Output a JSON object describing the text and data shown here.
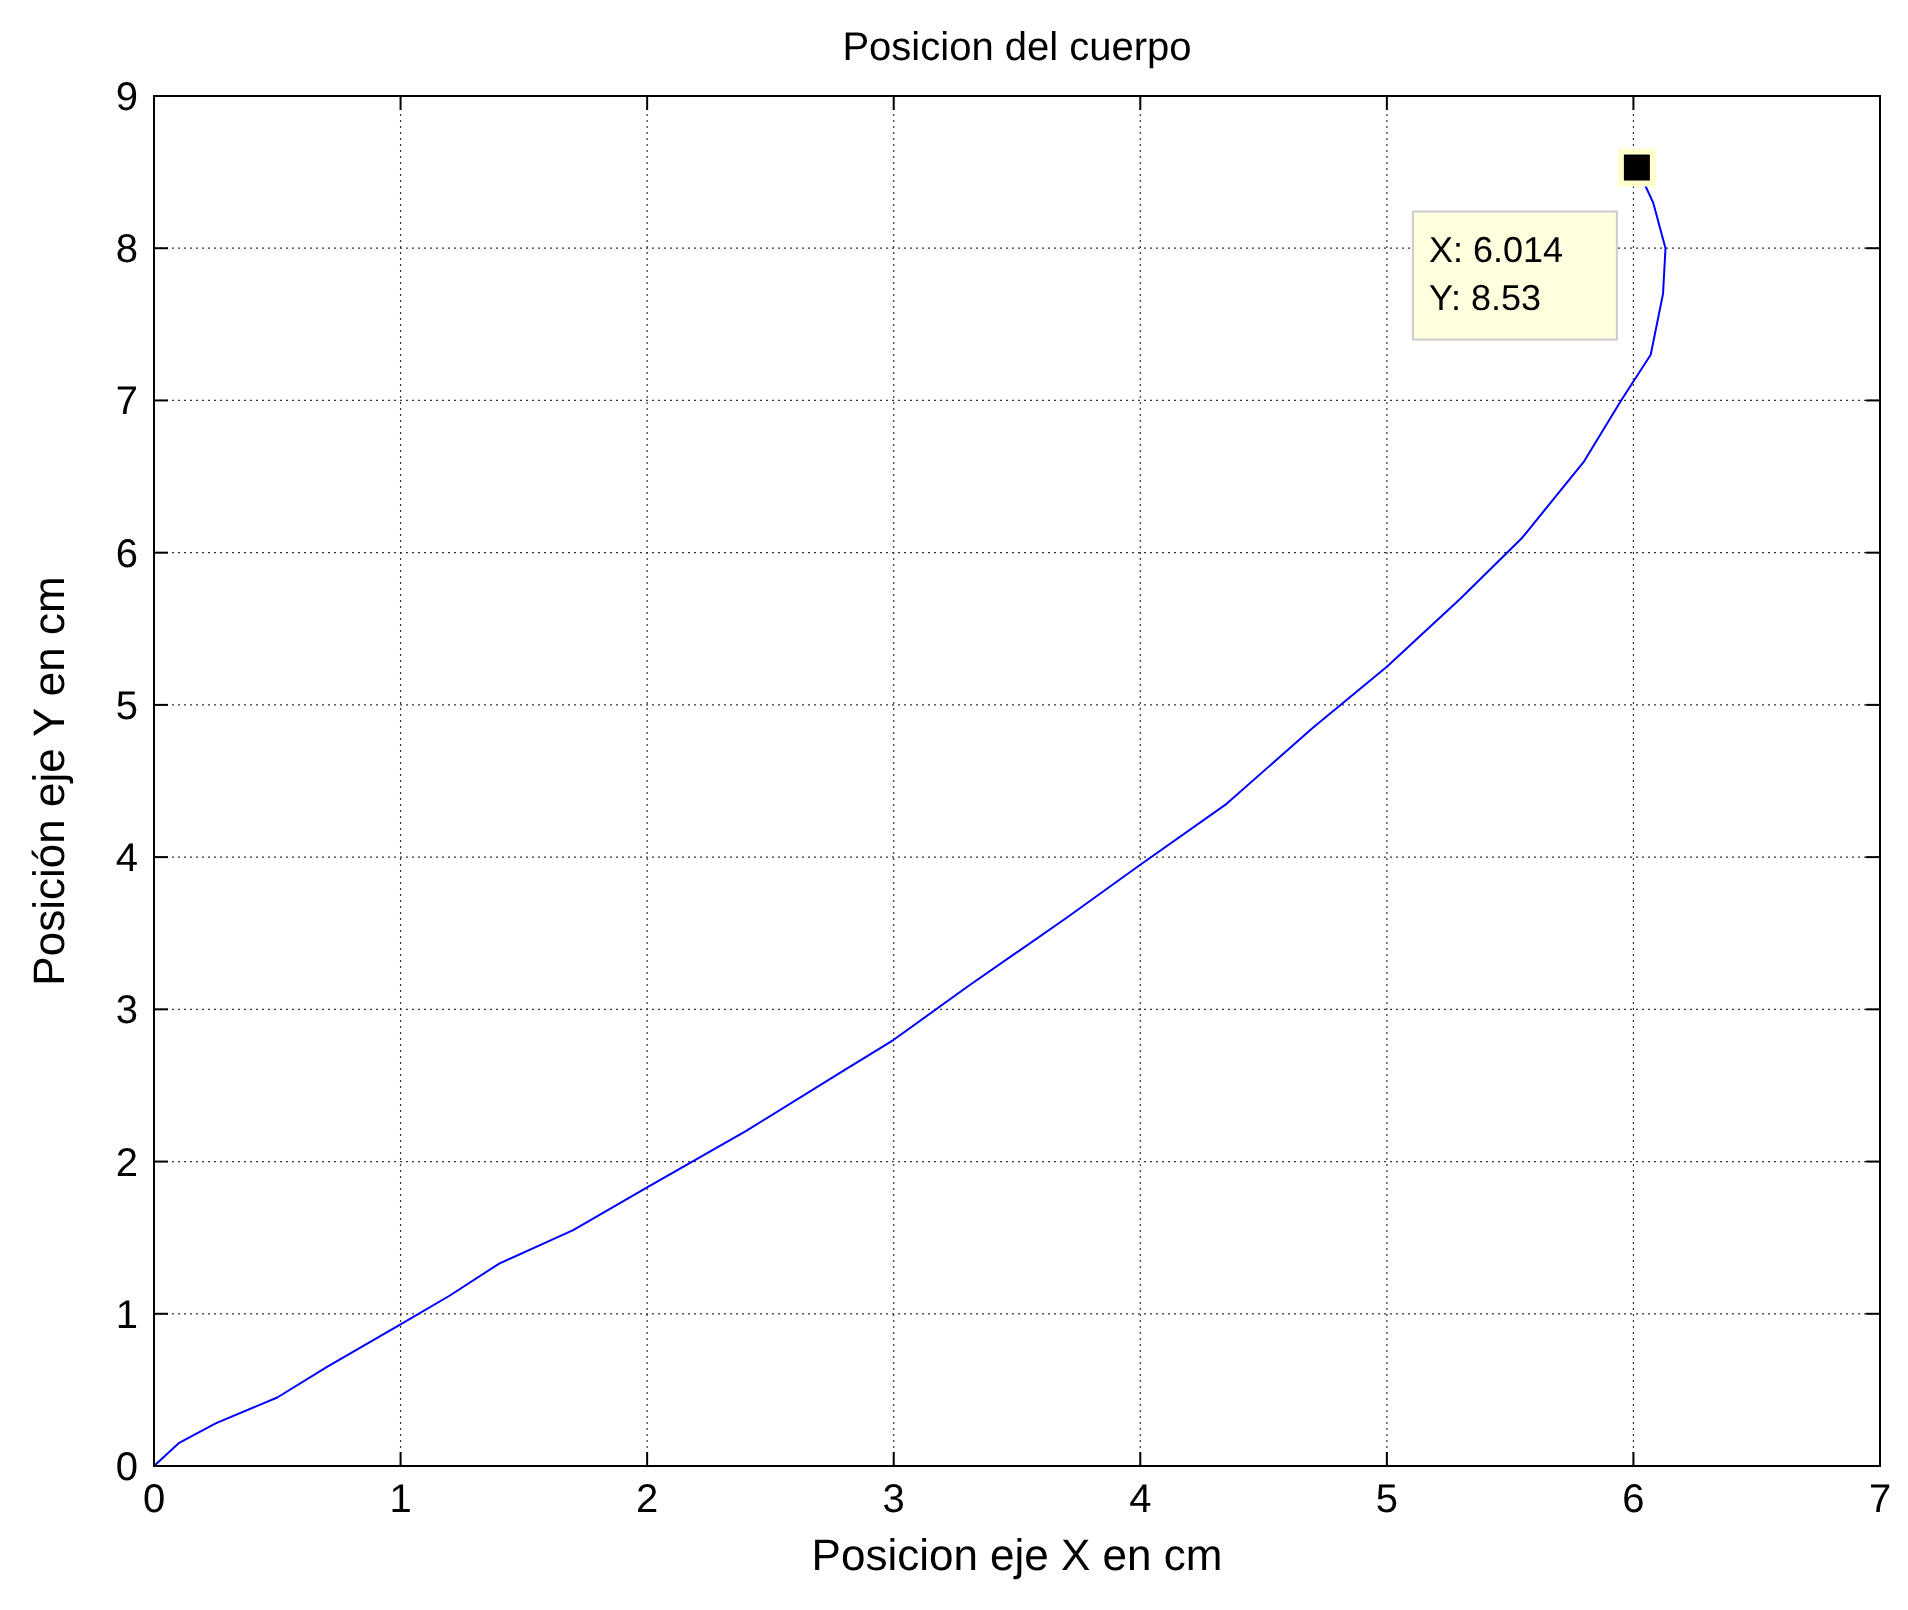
{
  "chart_data": {
    "type": "line",
    "title": "Posicion del cuerpo",
    "xlabel": "Posicion eje X en cm",
    "ylabel": "Posición eje Y en cm",
    "xlim": [
      0,
      7
    ],
    "xticks": [
      0,
      1,
      2,
      3,
      4,
      5,
      6,
      7
    ],
    "ylim": [
      0,
      9
    ],
    "yticks": [
      0,
      1,
      2,
      3,
      4,
      5,
      6,
      7,
      8,
      9
    ],
    "grid": true,
    "line_style": "solid",
    "series": [
      {
        "color": "#0000ff",
        "x": [
          0,
          0.1,
          0.25,
          0.5,
          0.7,
          1,
          1.2,
          1.4,
          1.7,
          2,
          2.4,
          2.8,
          3,
          3.3,
          3.7,
          4,
          4.35,
          4.7,
          5,
          5.3,
          5.55,
          5.8,
          5.95,
          6.07,
          6.12,
          6.13,
          6.08,
          6.014
        ],
        "values": [
          0,
          0.15,
          0.28,
          0.45,
          0.65,
          0.93,
          1.12,
          1.33,
          1.55,
          1.83,
          2.2,
          2.6,
          2.8,
          3.15,
          3.6,
          3.95,
          4.35,
          4.85,
          5.25,
          5.7,
          6.1,
          6.6,
          7.0,
          7.3,
          7.7,
          8.0,
          8.3,
          8.53
        ]
      }
    ],
    "annotations": [
      {
        "text": "X: 6.014\nY: 8.53",
        "x": 6.014,
        "y": 8.53
      }
    ]
  }
}
